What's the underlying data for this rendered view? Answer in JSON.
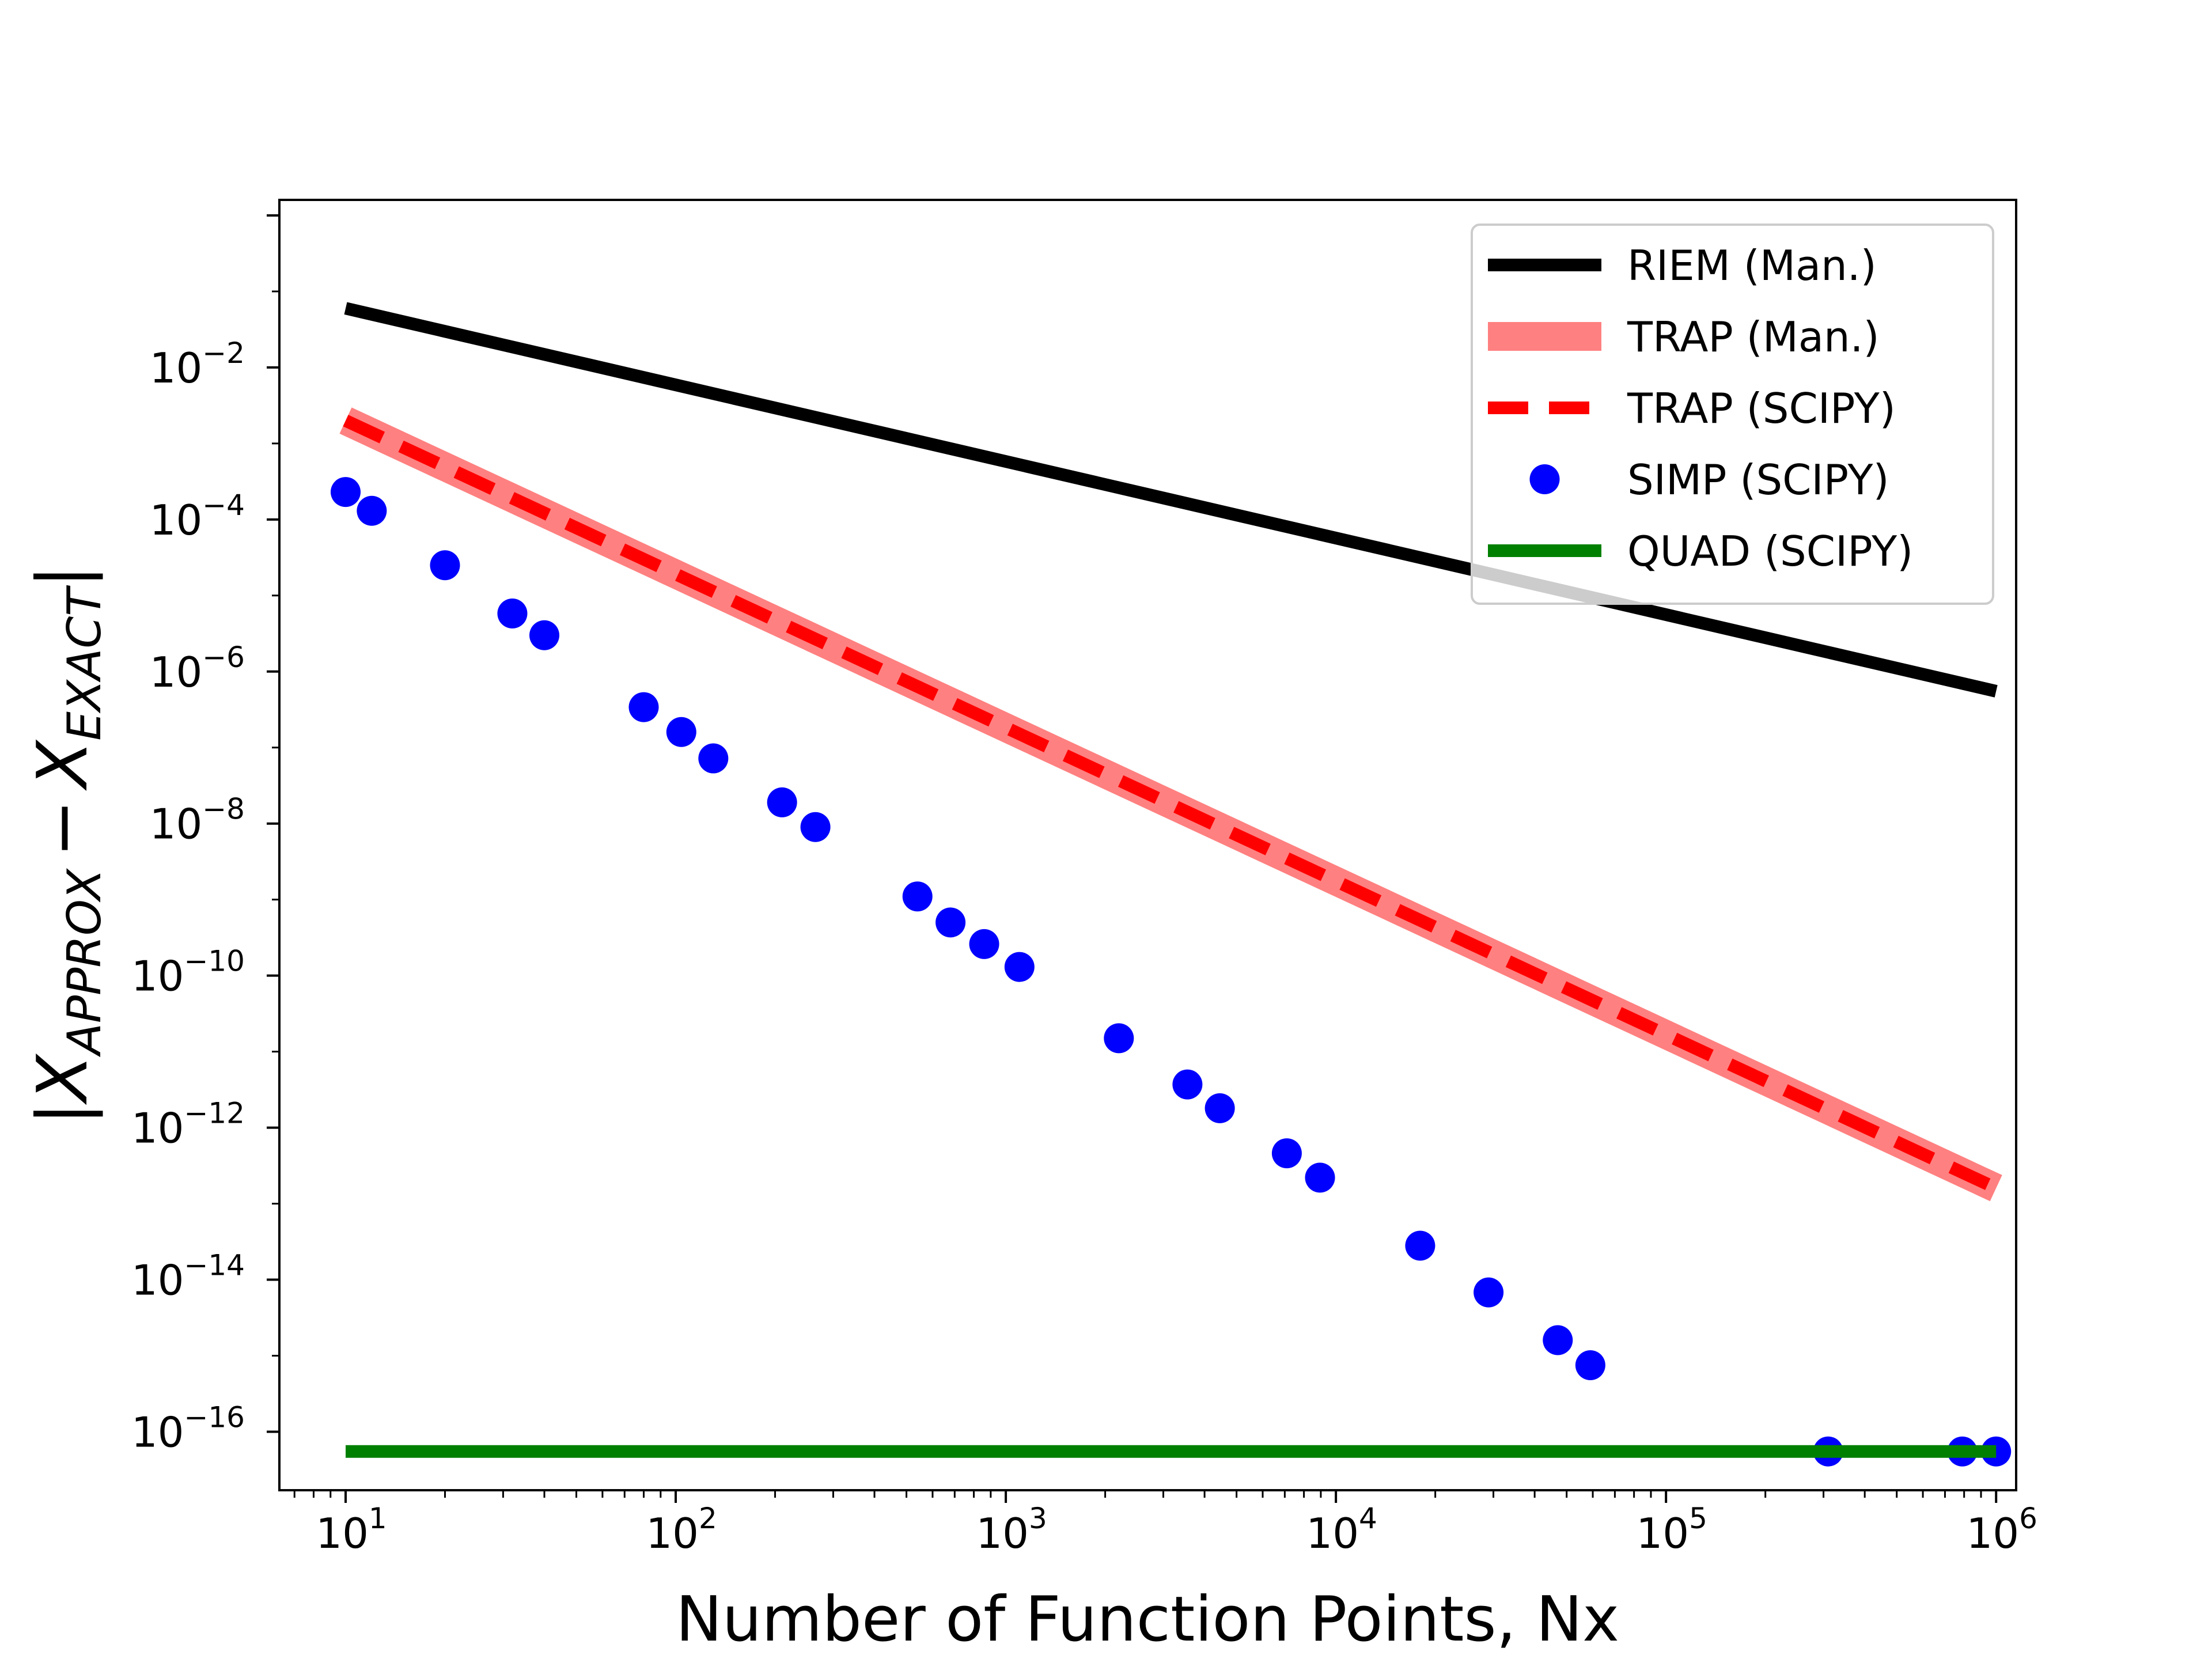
{
  "chart_data": {
    "type": "line",
    "title": "",
    "xlabel": "Number of Function Points, Nx",
    "ylabel": {
      "base": "X",
      "sub_approx": "APPROX",
      "sub_exact": "EXACT",
      "minus": "−",
      "bar": "|"
    },
    "x_scale": "log",
    "y_scale": "log",
    "xlim": [
      6.3,
      1150000
    ],
    "ylim": [
      1.7e-17,
      1.6
    ],
    "x_ticks": [
      {
        "value": 10,
        "base": "10",
        "exp": "1"
      },
      {
        "value": 100,
        "base": "10",
        "exp": "2"
      },
      {
        "value": 1000,
        "base": "10",
        "exp": "3"
      },
      {
        "value": 10000,
        "base": "10",
        "exp": "4"
      },
      {
        "value": 100000,
        "base": "10",
        "exp": "5"
      },
      {
        "value": 1000000,
        "base": "10",
        "exp": "6"
      }
    ],
    "y_ticks": [
      {
        "value": 0.01,
        "base": "10",
        "exp": "−2"
      },
      {
        "value": 0.0001,
        "base": "10",
        "exp": "−4"
      },
      {
        "value": 1e-06,
        "base": "10",
        "exp": "−6"
      },
      {
        "value": 1e-08,
        "base": "10",
        "exp": "−8"
      },
      {
        "value": 1e-10,
        "base": "10",
        "exp": "−10"
      },
      {
        "value": 1e-12,
        "base": "10",
        "exp": "−12"
      },
      {
        "value": 1e-14,
        "base": "10",
        "exp": "−14"
      },
      {
        "value": 1e-16,
        "base": "10",
        "exp": "−16"
      }
    ],
    "grid": false,
    "legend_position": "top-right",
    "series": [
      {
        "name": "RIEM (Man.)",
        "style": "line",
        "color": "#000000",
        "x": [
          10,
          1000000
        ],
        "y": [
          0.06,
          5.5e-07
        ]
      },
      {
        "name": "TRAP (Man.)",
        "style": "thick-line",
        "color": "#ff8080",
        "x": [
          10,
          1000000
        ],
        "y": [
          0.002,
          1.6e-13
        ]
      },
      {
        "name": "TRAP (SCIPY)",
        "style": "dashed-line",
        "color": "#ff0000",
        "x": [
          10,
          1000000
        ],
        "y": [
          0.002,
          1.6e-13
        ]
      },
      {
        "name": "SIMP (SCIPY)",
        "style": "markers",
        "color": "#0000ff",
        "x": [
          10,
          12,
          20,
          32,
          40,
          80,
          104,
          130,
          210,
          265,
          540,
          680,
          860,
          1100,
          2200,
          3550,
          4450,
          7100,
          8950,
          18000,
          29000,
          47000,
          59000,
          310000,
          790000,
          1000000
        ],
        "y": [
          0.00023,
          0.00013,
          2.5e-05,
          5.8e-06,
          3e-06,
          3.4e-07,
          1.6e-07,
          7.2e-08,
          1.9e-08,
          9e-09,
          1.1e-09,
          5e-10,
          2.6e-10,
          1.3e-10,
          1.5e-11,
          3.7e-12,
          1.8e-12,
          4.6e-13,
          2.2e-13,
          2.8e-14,
          6.8e-15,
          1.6e-15,
          7.5e-16,
          5.5e-17,
          5.5e-17,
          5.5e-17
        ]
      },
      {
        "name": "QUAD (SCIPY)",
        "style": "line",
        "color": "#008000",
        "x": [
          10,
          1000000
        ],
        "y": [
          5.5e-17,
          5.5e-17
        ]
      }
    ]
  }
}
